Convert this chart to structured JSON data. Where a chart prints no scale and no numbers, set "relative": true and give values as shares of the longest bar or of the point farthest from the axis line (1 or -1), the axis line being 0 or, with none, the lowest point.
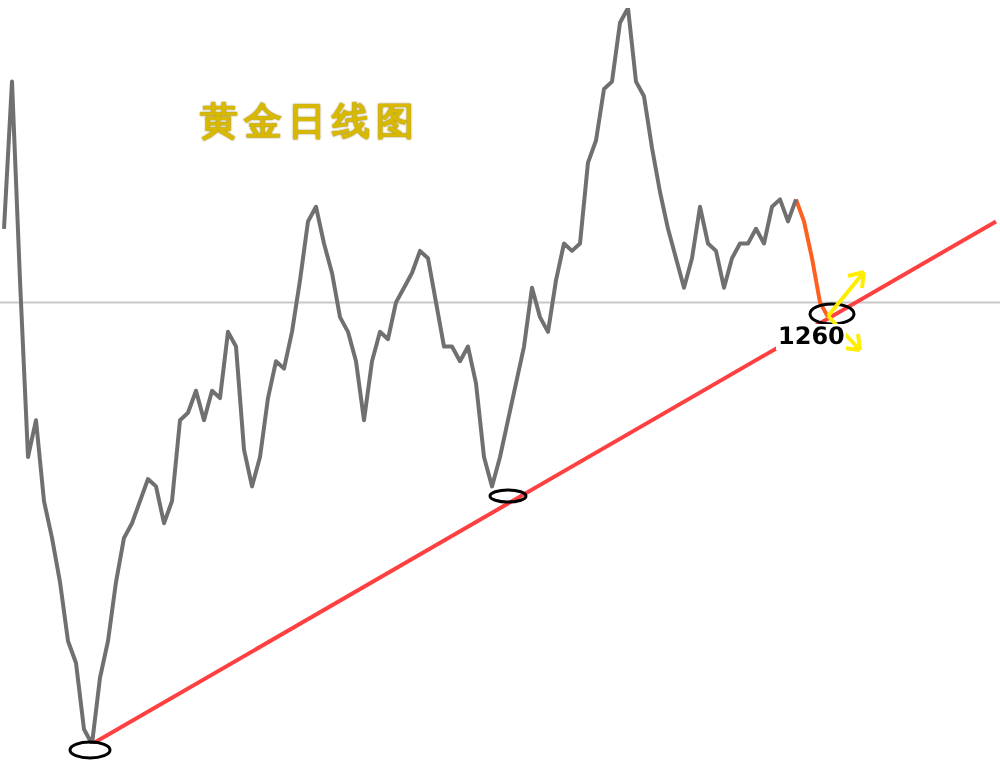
{
  "chart_data": {
    "type": "line",
    "title": "黄金日线图",
    "relative": true,
    "categories": [
      null,
      null,
      null,
      null,
      null,
      null,
      null,
      null,
      null,
      null,
      null,
      null,
      null,
      null,
      null,
      null,
      null,
      null,
      null,
      null,
      null,
      null,
      null,
      null,
      null,
      null,
      null,
      null,
      null,
      null,
      null,
      null,
      null,
      null,
      null,
      null,
      null,
      null,
      null,
      null,
      null,
      null,
      null,
      null,
      null,
      null,
      null,
      null,
      null,
      null,
      null,
      null,
      null,
      null,
      null,
      null,
      null,
      null,
      null,
      null,
      null,
      null,
      null,
      null,
      null,
      null,
      null,
      null,
      null,
      null,
      null,
      null,
      null,
      null,
      null,
      null,
      null,
      null,
      null,
      null,
      null,
      null,
      null,
      null,
      null,
      null,
      null,
      null,
      null,
      null,
      null,
      null,
      null,
      null,
      null,
      null,
      null,
      null,
      null,
      null,
      null,
      null,
      null,
      null,
      null,
      null,
      null,
      null,
      null,
      null,
      null,
      null,
      null,
      null,
      null,
      null,
      null,
      null,
      null,
      null,
      null,
      null,
      null,
      null,
      null
    ],
    "legend": false,
    "marker": "none",
    "line_style": "solid",
    "series": [
      {
        "color": "#707070",
        "values": [
          0.7,
          0.9,
          0.63,
          0.39,
          0.44,
          0.33,
          0.28,
          0.22,
          0.14,
          0.11,
          0.02,
          0.0,
          0.09,
          0.14,
          0.22,
          0.28,
          0.3,
          0.33,
          0.36,
          0.35,
          0.3,
          0.33,
          0.44,
          0.45,
          0.48,
          0.44,
          0.48,
          0.47,
          0.56,
          0.54,
          0.4,
          0.35,
          0.39,
          0.47,
          0.52,
          0.51,
          0.56,
          0.63,
          0.71,
          0.73,
          0.68,
          0.64,
          0.58,
          0.56,
          0.52,
          0.44,
          0.52,
          0.56,
          0.55,
          0.6,
          0.62,
          0.64,
          0.67,
          0.66,
          0.6,
          0.54,
          0.54,
          0.52,
          0.54,
          0.49,
          0.39,
          0.35,
          0.39,
          0.44,
          0.49,
          0.54,
          0.62,
          0.58,
          0.56,
          0.63,
          0.68,
          0.67,
          0.68,
          0.79,
          0.82,
          0.89,
          0.9,
          0.98,
          1.0,
          0.9,
          0.88,
          0.81,
          0.75,
          0.7,
          0.66,
          0.62,
          0.66,
          0.73,
          0.68,
          0.67,
          0.62,
          0.66,
          0.68,
          0.68,
          0.7,
          0.68,
          0.73,
          0.74,
          0.71,
          0.74,
          null,
          null,
          null,
          null,
          null,
          null,
          null,
          null,
          null,
          null,
          null,
          null,
          null,
          null,
          null,
          null,
          null,
          null,
          null,
          null,
          null,
          null,
          null,
          null,
          null
        ]
      },
      {
        "color": "#ff6020",
        "values": [
          null,
          null,
          null,
          null,
          null,
          null,
          null,
          null,
          null,
          null,
          null,
          null,
          null,
          null,
          null,
          null,
          null,
          null,
          null,
          null,
          null,
          null,
          null,
          null,
          null,
          null,
          null,
          null,
          null,
          null,
          null,
          null,
          null,
          null,
          null,
          null,
          null,
          null,
          null,
          null,
          null,
          null,
          null,
          null,
          null,
          null,
          null,
          null,
          null,
          null,
          null,
          null,
          null,
          null,
          null,
          null,
          null,
          null,
          null,
          null,
          null,
          null,
          null,
          null,
          null,
          null,
          null,
          null,
          null,
          null,
          null,
          null,
          null,
          null,
          null,
          null,
          null,
          null,
          null,
          null,
          null,
          null,
          null,
          null,
          null,
          null,
          null,
          null,
          null,
          null,
          null,
          null,
          null,
          null,
          null,
          null,
          null,
          null,
          null,
          0.74,
          0.71,
          0.66,
          0.6,
          0.58,
          null,
          null,
          null,
          null,
          null,
          null,
          null,
          null,
          null,
          null,
          null,
          null,
          null,
          null,
          null,
          null,
          null,
          null,
          null,
          null,
          null
        ]
      },
      {
        "color": "#ff4040",
        "values": [
          null,
          null,
          null,
          null,
          null,
          null,
          null,
          null,
          null,
          null,
          null,
          0.0,
          null,
          null,
          null,
          null,
          null,
          null,
          null,
          null,
          null,
          null,
          null,
          null,
          null,
          null,
          null,
          null,
          null,
          null,
          null,
          null,
          null,
          null,
          null,
          null,
          null,
          null,
          null,
          null,
          null,
          null,
          null,
          null,
          null,
          null,
          null,
          null,
          null,
          null,
          null,
          null,
          null,
          null,
          null,
          null,
          null,
          null,
          null,
          null,
          null,
          null,
          null,
          null,
          null,
          null,
          null,
          null,
          null,
          null,
          null,
          null,
          null,
          null,
          null,
          null,
          null,
          null,
          null,
          null,
          null,
          null,
          null,
          null,
          null,
          null,
          null,
          null,
          null,
          null,
          null,
          null,
          null,
          null,
          null,
          null,
          null,
          null,
          null,
          null,
          null,
          null,
          null,
          null,
          null,
          null,
          null,
          null,
          null,
          null,
          null,
          null,
          null,
          null,
          null,
          null,
          null,
          null,
          null,
          null,
          null,
          null,
          null,
          null,
          0.71
        ]
      }
    ],
    "ref_lines": [
      {
        "axis": "y",
        "value": 0.6,
        "color": "#c8c8c8"
      }
    ],
    "annotations": [
      "1260"
    ]
  }
}
